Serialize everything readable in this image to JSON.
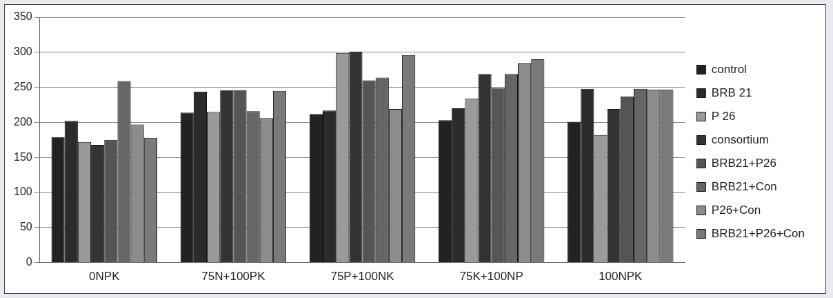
{
  "chart_data": {
    "type": "bar",
    "categories": [
      "0NPK",
      "75N+100PK",
      "75P+100NK",
      "75K+100NP",
      "100NPK"
    ],
    "series": [
      {
        "name": "control",
        "color": "#222222",
        "values": [
          179,
          214,
          212,
          203,
          201
        ]
      },
      {
        "name": "BRB 21",
        "color": "#2b2b2b",
        "values": [
          202,
          244,
          217,
          220,
          248
        ]
      },
      {
        "name": "P 26",
        "color": "#9a9a9a",
        "values": [
          172,
          215,
          299,
          234,
          182
        ]
      },
      {
        "name": "consortium",
        "color": "#333333",
        "values": [
          168,
          246,
          301,
          269,
          219
        ]
      },
      {
        "name": "BRB21+P26",
        "color": "#555555",
        "values": [
          175,
          246,
          260,
          249,
          237
        ]
      },
      {
        "name": "BRB21+Con",
        "color": "#666666",
        "values": [
          259,
          216,
          264,
          269,
          248
        ]
      },
      {
        "name": "P26+Con",
        "color": "#8c8c8c",
        "values": [
          197,
          206,
          219,
          284,
          247
        ]
      },
      {
        "name": "BRB21+P26+Con",
        "color": "#7a7a7a",
        "values": [
          178,
          245,
          296,
          290,
          247
        ]
      }
    ],
    "ylim": [
      0,
      350
    ],
    "yticks": [
      0,
      50,
      100,
      150,
      200,
      250,
      300,
      350
    ],
    "grid": "y",
    "legend": "right"
  }
}
